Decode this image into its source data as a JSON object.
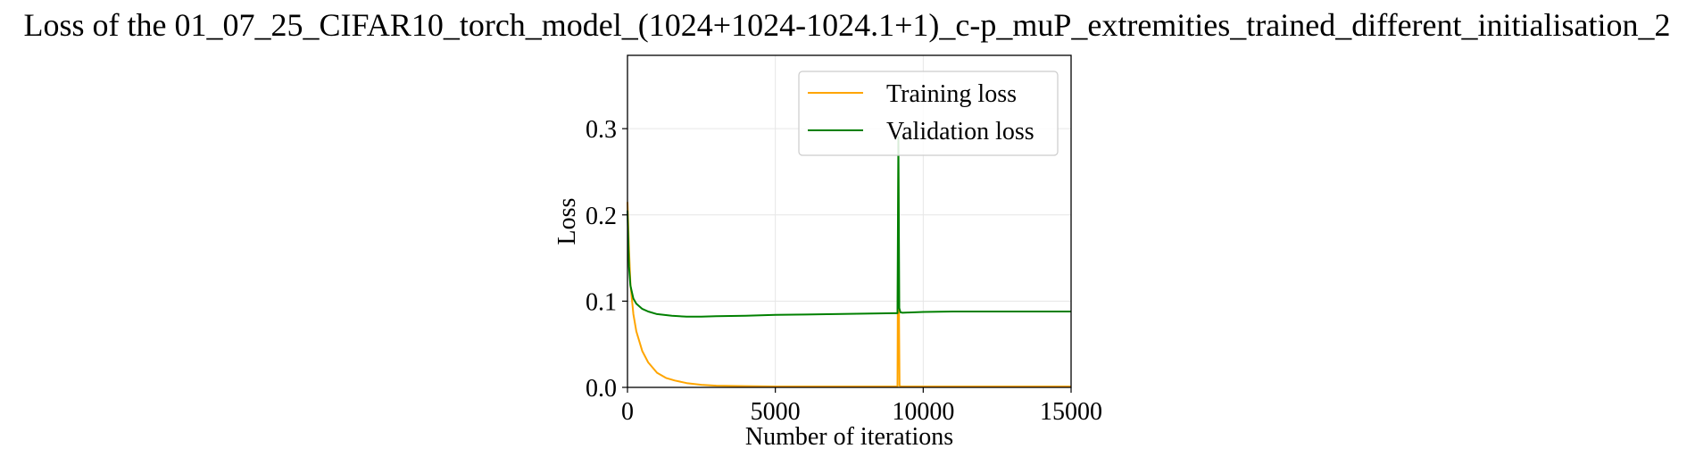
{
  "chart_data": {
    "type": "line",
    "title": "Loss of the 01_07_25_CIFAR10_torch_model_(1024+1024-1024.1+1)_c-p_muP_extremities_trained_different_initialisation_2",
    "xlabel": "Number of iterations",
    "ylabel": "Loss",
    "xlim": [
      0,
      15000
    ],
    "ylim": [
      0,
      0.385
    ],
    "xticks": [
      0,
      5000,
      10000,
      15000
    ],
    "xtick_labels": [
      "0",
      "5000",
      "10000",
      "15000"
    ],
    "yticks": [
      0.0,
      0.1,
      0.2,
      0.3
    ],
    "ytick_labels": [
      "0.0",
      "0.1",
      "0.2",
      "0.3"
    ],
    "grid": true,
    "legend_position": "top-right",
    "series": [
      {
        "name": "Training loss",
        "color": "#ffa500",
        "x": [
          0,
          50,
          100,
          200,
          300,
          500,
          700,
          1000,
          1300,
          1600,
          2000,
          2500,
          3000,
          4000,
          5000,
          6000,
          7000,
          8000,
          9000,
          9130,
          9160,
          9180,
          9200,
          9250,
          10000,
          11000,
          12000,
          13000,
          14000,
          15000
        ],
        "y": [
          0.215,
          0.16,
          0.12,
          0.085,
          0.065,
          0.042,
          0.029,
          0.017,
          0.011,
          0.008,
          0.005,
          0.003,
          0.002,
          0.0015,
          0.001,
          0.001,
          0.001,
          0.001,
          0.001,
          0.001,
          0.26,
          0.08,
          0.002,
          0.001,
          0.001,
          0.001,
          0.001,
          0.001,
          0.001,
          0.001
        ]
      },
      {
        "name": "Validation loss",
        "color": "#008000",
        "x": [
          0,
          50,
          100,
          200,
          300,
          500,
          700,
          1000,
          1500,
          2000,
          2500,
          3000,
          4000,
          5000,
          6000,
          7000,
          8000,
          9000,
          9130,
          9160,
          9190,
          9230,
          9300,
          9500,
          10000,
          11000,
          12000,
          13000,
          14000,
          15000
        ],
        "y": [
          0.205,
          0.14,
          0.118,
          0.103,
          0.097,
          0.091,
          0.088,
          0.085,
          0.083,
          0.082,
          0.082,
          0.0825,
          0.083,
          0.084,
          0.0845,
          0.085,
          0.0855,
          0.086,
          0.086,
          0.29,
          0.092,
          0.087,
          0.0865,
          0.0868,
          0.0875,
          0.088,
          0.088,
          0.088,
          0.088,
          0.088
        ]
      }
    ]
  }
}
